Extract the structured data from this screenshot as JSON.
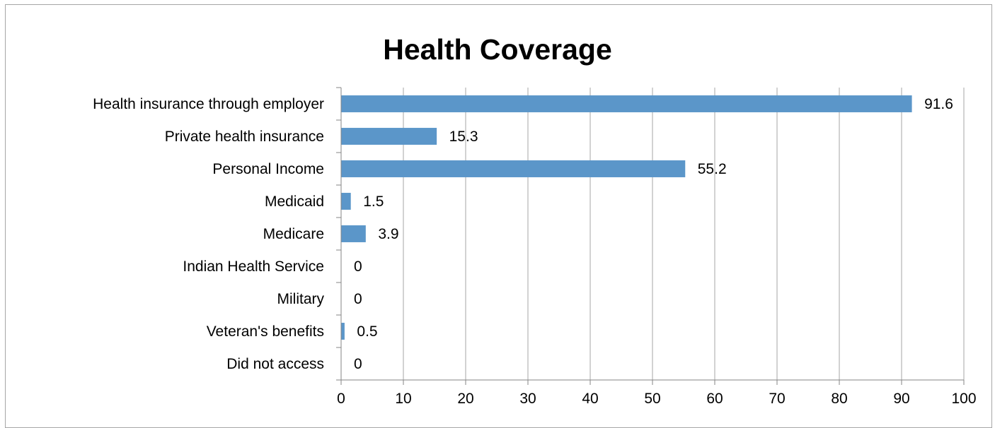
{
  "chart_data": {
    "type": "bar",
    "orientation": "horizontal",
    "title": "Health Coverage",
    "xlabel": "",
    "ylabel": "",
    "categories": [
      "Health insurance through employer",
      "Private health insurance",
      "Personal Income",
      "Medicaid",
      "Medicare",
      "Indian Health Service",
      "Military",
      "Veteran's benefits",
      "Did not access"
    ],
    "values": [
      91.6,
      15.3,
      55.2,
      1.5,
      3.9,
      0,
      0,
      0.5,
      0
    ],
    "data_labels": [
      "91.6",
      "15.3",
      "55.2",
      "1.5",
      "3.9",
      "0",
      "0",
      "0.5",
      "0"
    ],
    "xlim": [
      0,
      100
    ],
    "x_ticks": [
      0,
      10,
      20,
      30,
      40,
      50,
      60,
      70,
      80,
      90,
      100
    ],
    "grid": true,
    "legend": "none",
    "colors": {
      "bar": "#5b96c9",
      "grid": "#a6a6a6",
      "axis": "#868686"
    }
  }
}
